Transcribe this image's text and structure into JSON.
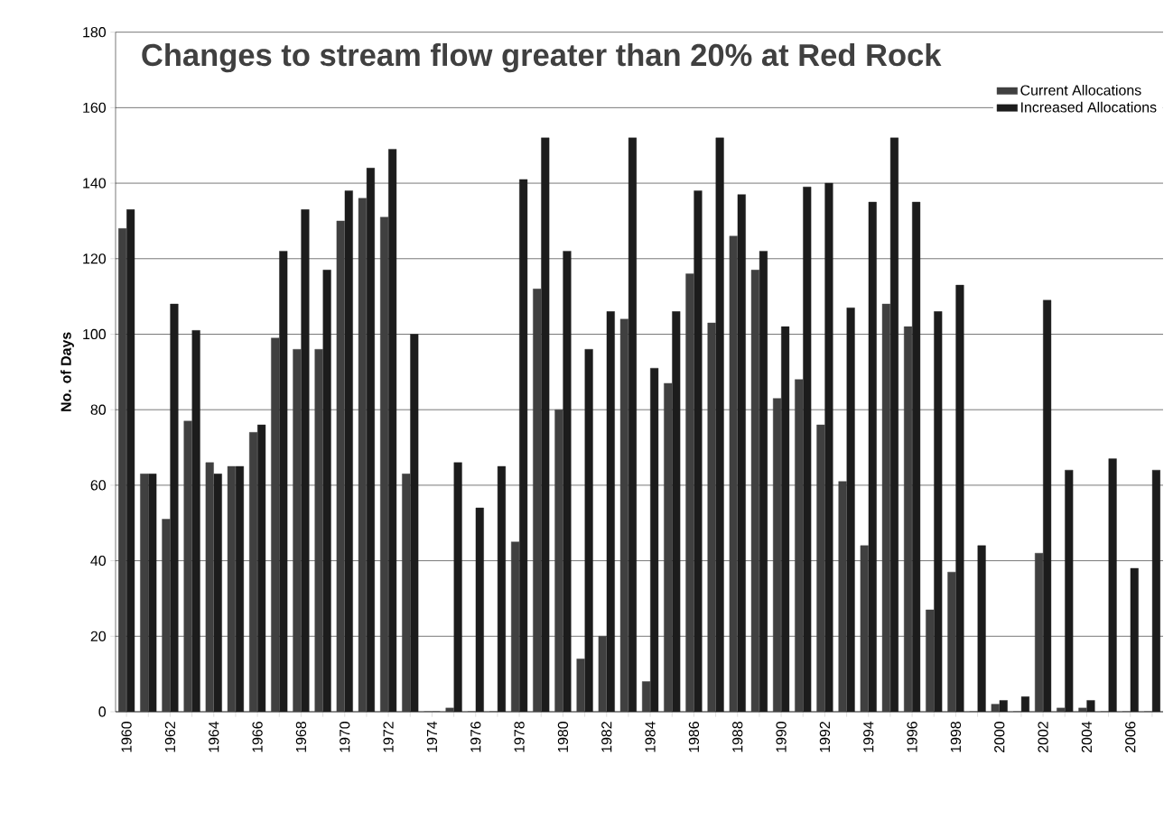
{
  "chart_data": {
    "type": "bar",
    "title": "Changes to stream flow greater than 20% at Red Rock",
    "ylabel": "No. of Days",
    "categories": [
      "1960",
      null,
      "1962",
      null,
      "1964",
      null,
      "1966",
      null,
      "1968",
      null,
      "1970",
      null,
      "1972",
      null,
      "1974",
      null,
      "1976",
      null,
      "1978",
      null,
      "1980",
      null,
      "1982",
      null,
      "1984",
      null,
      "1986",
      null,
      "1988",
      null,
      "1990",
      null,
      "1992",
      null,
      "1994",
      null,
      "1996",
      null,
      "1998",
      null,
      "2000",
      null,
      "2002",
      null,
      "2004",
      null,
      "2006",
      null
    ],
    "series": [
      {
        "name": "Current Allocations",
        "color": "#404040",
        "values": [
          128,
          63,
          51,
          77,
          66,
          65,
          74,
          99,
          96,
          96,
          130,
          136,
          131,
          63,
          0,
          1,
          0,
          0,
          45,
          112,
          80,
          14,
          20,
          104,
          8,
          87,
          116,
          103,
          126,
          117,
          83,
          88,
          76,
          61,
          44,
          108,
          102,
          27,
          37,
          0,
          2,
          0,
          42,
          1,
          1,
          0,
          0,
          0
        ]
      },
      {
        "name": "Increased Allocations",
        "color": "#1c1c1c",
        "values": [
          133,
          63,
          108,
          101,
          63,
          65,
          76,
          122,
          133,
          117,
          138,
          144,
          149,
          100,
          0,
          66,
          54,
          65,
          141,
          152,
          122,
          96,
          106,
          152,
          91,
          106,
          138,
          152,
          137,
          122,
          102,
          139,
          140,
          107,
          135,
          152,
          135,
          106,
          113,
          44,
          3,
          4,
          109,
          64,
          3,
          67,
          38,
          64
        ]
      }
    ],
    "ylim": [
      0,
      180
    ],
    "yticks": [
      0,
      20,
      40,
      60,
      80,
      100,
      120,
      140,
      160,
      180
    ],
    "grid": "y",
    "legend": "top right"
  }
}
